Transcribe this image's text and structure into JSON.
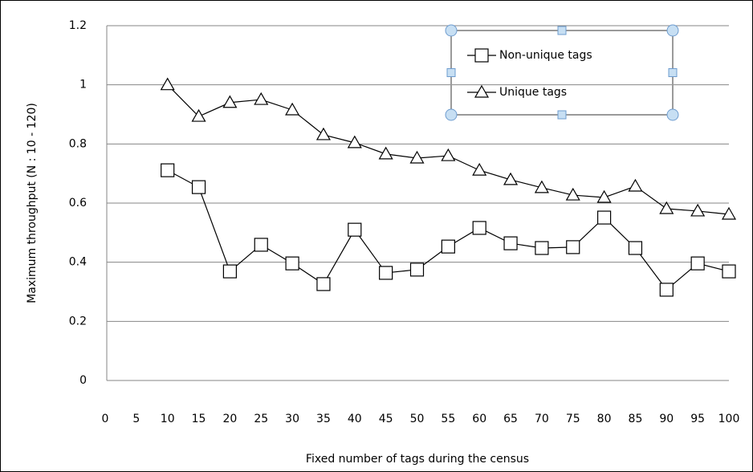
{
  "chart_data": {
    "type": "line",
    "x_label": "Fixed number of tags during the census",
    "y_label": "Maximum  throughput (N : 10 - 120)",
    "x": [
      10,
      15,
      20,
      25,
      30,
      35,
      40,
      45,
      50,
      55,
      60,
      65,
      70,
      75,
      80,
      85,
      90,
      95,
      100
    ],
    "series": [
      {
        "name": "Non-unique tags",
        "color": "#000000",
        "marker": "square",
        "values": [
          0.711,
          0.654,
          0.369,
          0.459,
          0.396,
          0.326,
          0.51,
          0.364,
          0.375,
          0.453,
          0.516,
          0.464,
          0.448,
          0.451,
          0.551,
          0.448,
          0.307,
          0.396,
          0.369
        ]
      },
      {
        "name": "Unique tags",
        "color": "#000000",
        "marker": "triangle",
        "values": [
          1.0,
          0.893,
          0.94,
          0.95,
          0.915,
          0.831,
          0.804,
          0.766,
          0.752,
          0.76,
          0.711,
          0.679,
          0.652,
          0.627,
          0.619,
          0.657,
          0.581,
          0.573,
          0.562
        ]
      }
    ],
    "xlim": [
      0,
      100
    ],
    "xticks": [
      0,
      5,
      10,
      15,
      20,
      25,
      30,
      35,
      40,
      45,
      50,
      55,
      60,
      65,
      70,
      75,
      80,
      85,
      90,
      95,
      100
    ],
    "ylim": [
      0,
      1.2
    ],
    "yticks": [
      0,
      0.2,
      0.4,
      0.6,
      0.8,
      1,
      1.2
    ],
    "grid": true,
    "legend": "upper right"
  }
}
